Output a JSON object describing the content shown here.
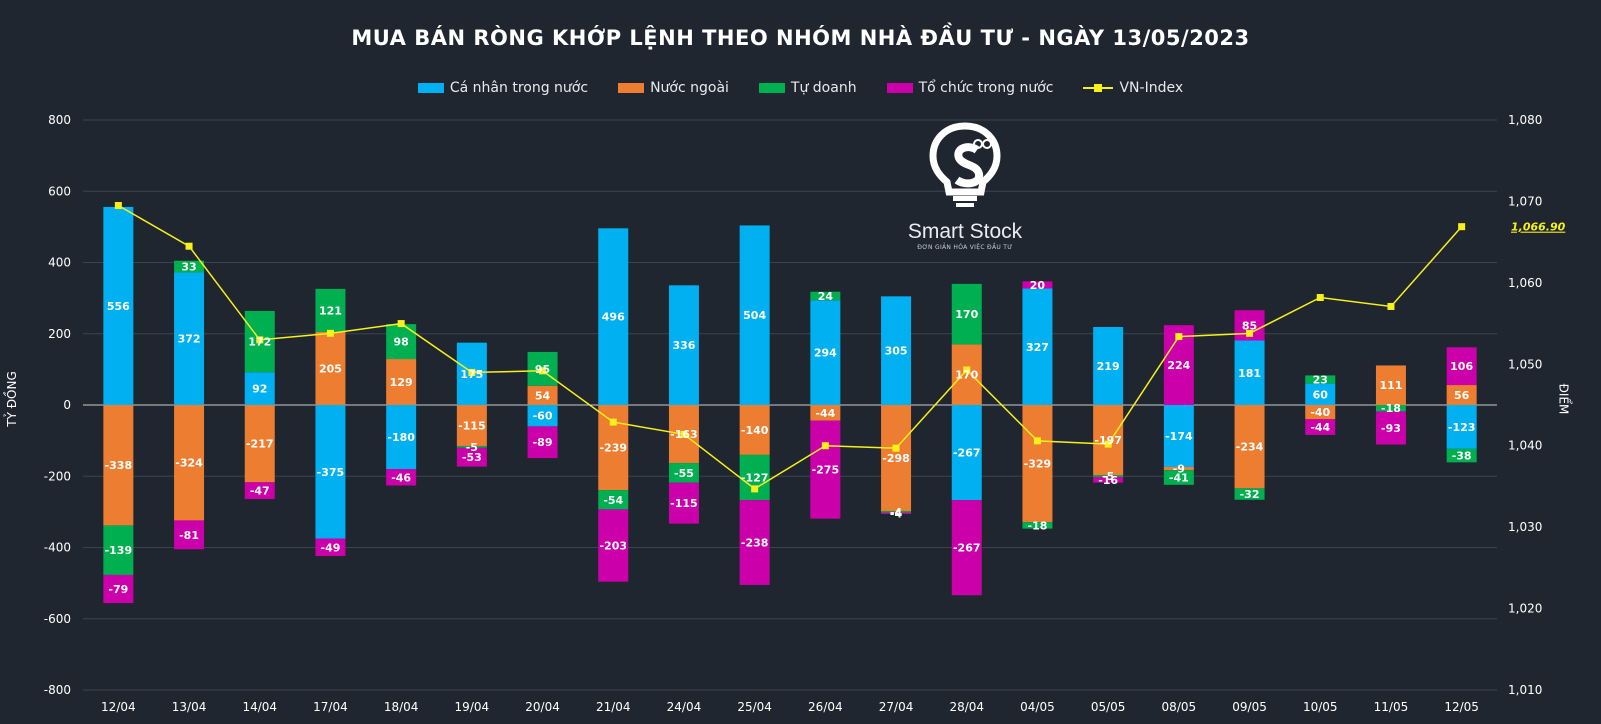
{
  "chart_data": {
    "type": "bar",
    "stacked": true,
    "title": "MUA BÁN RÒNG KHỚP LỆNH THEO NHÓM NHÀ ĐẦU TƯ - NGÀY 13/05/2023",
    "ylabel": "TỶ ĐỒNG",
    "y2label": "ĐIỂM",
    "ylim": [
      -800,
      800
    ],
    "y2lim": [
      1010,
      1080
    ],
    "yticks": [
      "-800",
      "-600",
      "-400",
      "-200",
      "0",
      "200",
      "400",
      "600",
      "800"
    ],
    "y2ticks": [
      "1,010",
      "1,020",
      "1,030",
      "1,040",
      "1,050",
      "1,060",
      "1,070",
      "1,080"
    ],
    "categories": [
      "12/04",
      "13/04",
      "14/04",
      "17/04",
      "18/04",
      "19/04",
      "20/04",
      "21/04",
      "24/04",
      "25/04",
      "26/04",
      "27/04",
      "28/04",
      "04/05",
      "05/05",
      "08/05",
      "09/05",
      "10/05",
      "11/05",
      "12/05"
    ],
    "series": [
      {
        "name": "Cá nhân trong nước",
        "color": "#00b0f0",
        "values": [
          556,
          372,
          92,
          -375,
          -180,
          175,
          -60,
          496,
          336,
          504,
          294,
          305,
          -267,
          327,
          219,
          -174,
          181,
          60,
          0,
          -123
        ]
      },
      {
        "name": "Nước ngoài",
        "color": "#ed7d31",
        "values": [
          -338,
          -324,
          -217,
          205,
          129,
          -115,
          54,
          -239,
          -163,
          -140,
          -44,
          -298,
          170,
          -329,
          -197,
          -9,
          -234,
          -40,
          111,
          56
        ]
      },
      {
        "name": "Tự doanh",
        "color": "#00b050",
        "values": [
          -139,
          33,
          172,
          121,
          98,
          -5,
          95,
          -54,
          -55,
          -127,
          24,
          -4,
          170,
          -18,
          -5,
          -41,
          -32,
          23,
          -18,
          -38
        ]
      },
      {
        "name": "Tổ chức trong nước",
        "color": "#cc00aa",
        "values": [
          -79,
          -81,
          -47,
          -49,
          -46,
          -53,
          -89,
          -203,
          -115,
          -238,
          -275,
          -4,
          -267,
          20,
          -16,
          224,
          85,
          -44,
          -93,
          106
        ]
      }
    ],
    "line": {
      "name": "VN-Index",
      "color": "#f7f01a",
      "values": [
        1069.5,
        1064.5,
        1053.0,
        1053.8,
        1055.0,
        1049.0,
        1049.2,
        1042.9,
        1041.4,
        1034.7,
        1040.0,
        1039.7,
        1049.3,
        1040.6,
        1040.2,
        1053.4,
        1053.8,
        1058.2,
        1057.1,
        1066.9
      ],
      "last_label": "1,066.90"
    }
  },
  "logo": {
    "name": "Smart Stock",
    "tagline": "ĐƠN GIẢN HÓA VIỆC ĐẦU TƯ"
  },
  "legend": {
    "cn": "Cá nhân trong nước",
    "nn": "Nước ngoài",
    "td": "Tự doanh",
    "tc": "Tổ chức trong nước",
    "vn": "VN-Index"
  }
}
